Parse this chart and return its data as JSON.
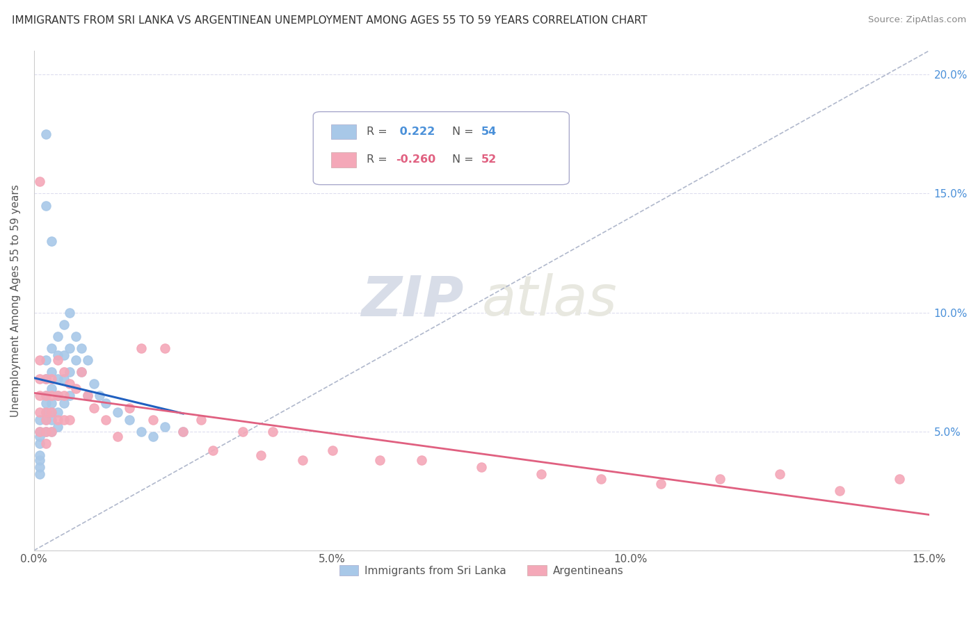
{
  "title": "IMMIGRANTS FROM SRI LANKA VS ARGENTINEAN UNEMPLOYMENT AMONG AGES 55 TO 59 YEARS CORRELATION CHART",
  "source": "Source: ZipAtlas.com",
  "ylabel": "Unemployment Among Ages 55 to 59 years",
  "xlim": [
    0.0,
    0.15
  ],
  "ylim": [
    0.0,
    0.21
  ],
  "xticks": [
    0.0,
    0.05,
    0.1,
    0.15
  ],
  "xticklabels": [
    "0.0%",
    "5.0%",
    "10.0%",
    "15.0%"
  ],
  "yticks_left": [
    0.0,
    0.05,
    0.1,
    0.15,
    0.2
  ],
  "yticks_right": [
    0.05,
    0.1,
    0.15,
    0.2
  ],
  "yticklabels_right": [
    "5.0%",
    "10.0%",
    "15.0%",
    "20.0%"
  ],
  "legend_labels": [
    "Immigrants from Sri Lanka",
    "Argentineans"
  ],
  "sri_lanka_color": "#a8c8e8",
  "argentina_color": "#f4a8b8",
  "sri_lanka_line_color": "#2060c0",
  "argentina_line_color": "#e06080",
  "watermark_zip": "ZIP",
  "watermark_atlas": "atlas",
  "legend_r_sri": "R =  0.222",
  "legend_n_sri": "N = 54",
  "legend_r_arg": "R = -0.260",
  "legend_n_arg": "N = 52",
  "sri_lanka_x": [
    0.001,
    0.001,
    0.001,
    0.001,
    0.001,
    0.001,
    0.001,
    0.001,
    0.002,
    0.002,
    0.002,
    0.002,
    0.002,
    0.002,
    0.002,
    0.002,
    0.002,
    0.003,
    0.003,
    0.003,
    0.003,
    0.003,
    0.003,
    0.003,
    0.003,
    0.004,
    0.004,
    0.004,
    0.004,
    0.004,
    0.004,
    0.005,
    0.005,
    0.005,
    0.005,
    0.006,
    0.006,
    0.006,
    0.006,
    0.007,
    0.007,
    0.008,
    0.008,
    0.009,
    0.009,
    0.01,
    0.011,
    0.012,
    0.014,
    0.016,
    0.018,
    0.02,
    0.022,
    0.025
  ],
  "sri_lanka_y": [
    0.055,
    0.05,
    0.048,
    0.045,
    0.04,
    0.038,
    0.035,
    0.032,
    0.175,
    0.145,
    0.08,
    0.072,
    0.065,
    0.062,
    0.058,
    0.055,
    0.05,
    0.13,
    0.085,
    0.075,
    0.068,
    0.062,
    0.058,
    0.055,
    0.05,
    0.09,
    0.082,
    0.072,
    0.065,
    0.058,
    0.052,
    0.095,
    0.082,
    0.072,
    0.062,
    0.1,
    0.085,
    0.075,
    0.065,
    0.09,
    0.08,
    0.085,
    0.075,
    0.08,
    0.065,
    0.07,
    0.065,
    0.062,
    0.058,
    0.055,
    0.05,
    0.048,
    0.052,
    0.05
  ],
  "argentina_x": [
    0.001,
    0.001,
    0.001,
    0.001,
    0.001,
    0.001,
    0.002,
    0.002,
    0.002,
    0.002,
    0.002,
    0.002,
    0.003,
    0.003,
    0.003,
    0.003,
    0.004,
    0.004,
    0.004,
    0.005,
    0.005,
    0.005,
    0.006,
    0.006,
    0.007,
    0.008,
    0.009,
    0.01,
    0.012,
    0.014,
    0.016,
    0.018,
    0.02,
    0.022,
    0.025,
    0.028,
    0.03,
    0.035,
    0.038,
    0.04,
    0.045,
    0.05,
    0.058,
    0.065,
    0.075,
    0.085,
    0.095,
    0.105,
    0.115,
    0.125,
    0.135,
    0.145
  ],
  "argentina_y": [
    0.155,
    0.08,
    0.072,
    0.065,
    0.058,
    0.05,
    0.072,
    0.065,
    0.058,
    0.055,
    0.05,
    0.045,
    0.072,
    0.065,
    0.058,
    0.05,
    0.08,
    0.065,
    0.055,
    0.075,
    0.065,
    0.055,
    0.07,
    0.055,
    0.068,
    0.075,
    0.065,
    0.06,
    0.055,
    0.048,
    0.06,
    0.085,
    0.055,
    0.085,
    0.05,
    0.055,
    0.042,
    0.05,
    0.04,
    0.05,
    0.038,
    0.042,
    0.038,
    0.038,
    0.035,
    0.032,
    0.03,
    0.028,
    0.03,
    0.032,
    0.025,
    0.03
  ]
}
